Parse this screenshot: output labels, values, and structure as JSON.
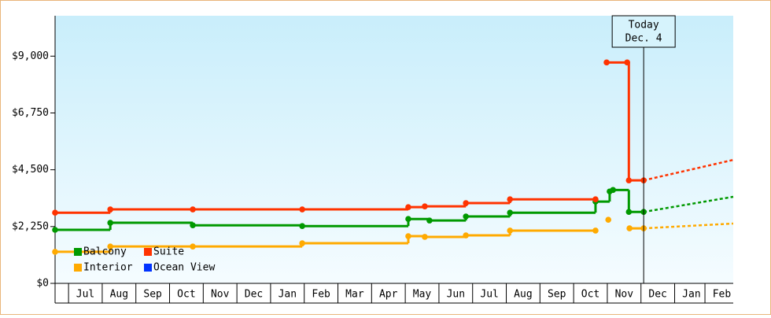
{
  "chart_data": {
    "type": "step-line",
    "xlim": [
      -0.4,
      19.74
    ],
    "ylim": [
      0,
      10600
    ],
    "yticks": [
      {
        "value": 0,
        "label": "$0"
      },
      {
        "value": 2250,
        "label": "$2,250"
      },
      {
        "value": 4500,
        "label": "$4,500"
      },
      {
        "value": 6750,
        "label": "$6,750"
      },
      {
        "value": 9000,
        "label": "$9,000"
      }
    ],
    "xticks": [
      {
        "value": 0.5,
        "label": "Jul"
      },
      {
        "value": 1.5,
        "label": "Aug"
      },
      {
        "value": 2.5,
        "label": "Sep"
      },
      {
        "value": 3.5,
        "label": "Oct"
      },
      {
        "value": 4.5,
        "label": "Nov"
      },
      {
        "value": 5.5,
        "label": "Dec"
      },
      {
        "value": 6.5,
        "label": "Jan"
      },
      {
        "value": 7.5,
        "label": "Feb"
      },
      {
        "value": 8.5,
        "label": "Mar"
      },
      {
        "value": 9.5,
        "label": "Apr"
      },
      {
        "value": 10.5,
        "label": "May"
      },
      {
        "value": 11.5,
        "label": "Jun"
      },
      {
        "value": 12.5,
        "label": "Jul"
      },
      {
        "value": 13.5,
        "label": "Aug"
      },
      {
        "value": 14.5,
        "label": "Sep"
      },
      {
        "value": 15.5,
        "label": "Oct"
      },
      {
        "value": 16.5,
        "label": "Nov"
      },
      {
        "value": 17.5,
        "label": "Dec"
      },
      {
        "value": 18.5,
        "label": "Jan"
      },
      {
        "value": 19.4,
        "label": "Feb"
      }
    ],
    "annotation": {
      "x": 17.08,
      "lines": [
        "Today",
        "Dec. 4"
      ]
    },
    "series": [
      {
        "name": "Balcony",
        "color": "#009900",
        "x": [
          -0.4,
          1.24,
          3.69,
          6.94,
          10.09,
          10.72,
          11.8,
          13.11,
          15.65,
          16.07,
          16.17,
          16.64,
          17.08
        ],
        "values": [
          2120,
          2400,
          2300,
          2270,
          2550,
          2490,
          2650,
          2800,
          3240,
          3640,
          3700,
          2830,
          2830
        ],
        "forecast": {
          "x": [
            17.08,
            19.74
          ],
          "values": [
            2830,
            3430
          ]
        }
      },
      {
        "name": "Suite",
        "color": "#ff3300",
        "x": [
          -0.4,
          1.24,
          3.69,
          6.94,
          10.09,
          10.58,
          11.8,
          13.11,
          15.65,
          15.8,
          15.98,
          16.59,
          16.64,
          17.08
        ],
        "values": [
          2800,
          2930,
          2930,
          2930,
          3020,
          3050,
          3180,
          3330,
          3330,
          null,
          8750,
          8750,
          4080,
          4080
        ],
        "forecast": {
          "x": [
            17.08,
            19.74
          ],
          "values": [
            4080,
            4890
          ]
        }
      },
      {
        "name": "Interior",
        "color": "#ffaa00",
        "x": [
          -0.4,
          1.24,
          3.69,
          6.94,
          10.09,
          10.58,
          11.8,
          13.11,
          15.65,
          15.8,
          16.03,
          16.3,
          16.66,
          17.08
        ],
        "values": [
          1250,
          1460,
          1460,
          1590,
          1870,
          1840,
          1900,
          2090,
          2090,
          null,
          2520,
          null,
          2180,
          2180
        ],
        "forecast": {
          "x": [
            17.08,
            19.74
          ],
          "values": [
            2180,
            2370
          ]
        }
      },
      {
        "name": "Ocean View",
        "color": "#0033ff",
        "x": [],
        "values": []
      }
    ]
  }
}
